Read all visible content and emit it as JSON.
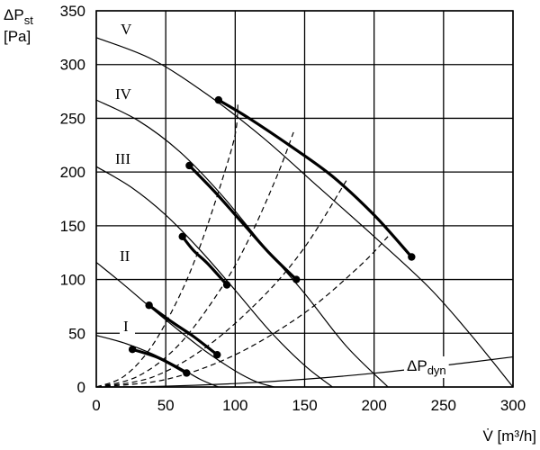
{
  "chart_data": {
    "type": "line",
    "title": "",
    "xlabel": "V̇ [m³/h]",
    "ylabel_main": "ΔP",
    "ylabel_sub": "st",
    "ylabel_unit": "[Pa]",
    "xlim": [
      0,
      300
    ],
    "ylim": [
      0,
      350
    ],
    "xticks": [
      0,
      50,
      100,
      150,
      200,
      250,
      300
    ],
    "yticks": [
      0,
      50,
      100,
      150,
      200,
      250,
      300,
      350
    ],
    "grid": true,
    "curves": [
      {
        "label": "I",
        "points": [
          [
            0,
            48
          ],
          [
            20,
            41
          ],
          [
            40,
            31
          ],
          [
            60,
            18
          ],
          [
            75,
            7
          ],
          [
            88,
            0
          ]
        ]
      },
      {
        "label": "II",
        "points": [
          [
            0,
            116
          ],
          [
            20,
            95
          ],
          [
            40,
            73
          ],
          [
            60,
            52
          ],
          [
            80,
            32
          ],
          [
            100,
            15
          ],
          [
            115,
            5
          ],
          [
            128,
            0
          ]
        ]
      },
      {
        "label": "III",
        "points": [
          [
            0,
            205
          ],
          [
            25,
            186
          ],
          [
            50,
            160
          ],
          [
            75,
            127
          ],
          [
            100,
            90
          ],
          [
            125,
            52
          ],
          [
            150,
            20
          ],
          [
            170,
            0
          ]
        ]
      },
      {
        "label": "IV",
        "points": [
          [
            0,
            267
          ],
          [
            30,
            248
          ],
          [
            60,
            219
          ],
          [
            90,
            179
          ],
          [
            120,
            132
          ],
          [
            150,
            87
          ],
          [
            180,
            38
          ],
          [
            210,
            0
          ]
        ]
      },
      {
        "label": "V",
        "points": [
          [
            0,
            325
          ],
          [
            40,
            305
          ],
          [
            80,
            272
          ],
          [
            120,
            232
          ],
          [
            160,
            186
          ],
          [
            200,
            140
          ],
          [
            240,
            92
          ],
          [
            270,
            48
          ],
          [
            300,
            0
          ]
        ]
      }
    ],
    "operating_points": [
      {
        "curve": "I",
        "range": [
          [
            26,
            35
          ],
          [
            65,
            13
          ]
        ]
      },
      {
        "curve": "II",
        "range": [
          [
            38,
            76
          ],
          [
            87,
            30
          ]
        ]
      },
      {
        "curve": "III",
        "range": [
          [
            62,
            140
          ],
          [
            94,
            95
          ]
        ]
      },
      {
        "curve": "IV",
        "range": [
          [
            67,
            206
          ],
          [
            144,
            100
          ]
        ]
      },
      {
        "curve": "V",
        "range": [
          [
            88,
            267
          ],
          [
            227,
            121
          ]
        ]
      }
    ],
    "bold_segments": [
      [
        [
          26,
          35
        ],
        [
          45,
          27
        ],
        [
          65,
          13
        ]
      ],
      [
        [
          38,
          76
        ],
        [
          55,
          60
        ],
        [
          70,
          47
        ],
        [
          87,
          30
        ]
      ],
      [
        [
          62,
          140
        ],
        [
          70,
          127
        ],
        [
          80,
          115
        ],
        [
          94,
          95
        ]
      ],
      [
        [
          67,
          206
        ],
        [
          85,
          182
        ],
        [
          105,
          153
        ],
        [
          125,
          124
        ],
        [
          144,
          100
        ]
      ],
      [
        [
          88,
          267
        ],
        [
          110,
          250
        ],
        [
          140,
          224
        ],
        [
          170,
          196
        ],
        [
          200,
          160
        ],
        [
          227,
          121
        ]
      ]
    ],
    "system_curves": [
      {
        "points": [
          [
            0,
            0
          ],
          [
            20,
            10
          ],
          [
            40,
            38
          ],
          [
            60,
            85
          ],
          [
            75,
            132
          ],
          [
            90,
            190
          ],
          [
            100,
            235
          ],
          [
            102,
            265
          ]
        ]
      },
      {
        "points": [
          [
            0,
            0
          ],
          [
            30,
            10
          ],
          [
            60,
            40
          ],
          [
            90,
            92
          ],
          [
            110,
            138
          ],
          [
            130,
            196
          ],
          [
            142,
            237
          ]
        ]
      },
      {
        "points": [
          [
            0,
            0
          ],
          [
            40,
            9
          ],
          [
            80,
            38
          ],
          [
            120,
            84
          ],
          [
            150,
            130
          ],
          [
            180,
            192
          ]
        ]
      },
      {
        "points": [
          [
            0,
            0
          ],
          [
            50,
            7
          ],
          [
            100,
            30
          ],
          [
            150,
            69
          ],
          [
            190,
            113
          ],
          [
            210,
            140
          ]
        ]
      }
    ],
    "dyn_curve": {
      "label_main": "ΔP",
      "label_sub": "dyn",
      "points": [
        [
          0,
          0
        ],
        [
          50,
          0.8
        ],
        [
          100,
          3.2
        ],
        [
          150,
          7.2
        ],
        [
          200,
          12.8
        ],
        [
          250,
          20
        ],
        [
          300,
          28
        ]
      ]
    }
  }
}
